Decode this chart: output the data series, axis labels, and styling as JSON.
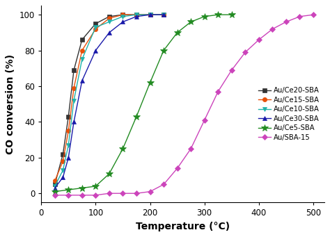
{
  "title": "",
  "xlabel": "Temperature (°C)",
  "ylabel": "CO conversion (%)",
  "xlim": [
    0,
    520
  ],
  "ylim": [
    -5,
    105
  ],
  "xticks": [
    0,
    100,
    200,
    300,
    400,
    500
  ],
  "yticks": [
    0,
    20,
    40,
    60,
    80,
    100
  ],
  "series": [
    {
      "label": "Au/Ce20-SBA",
      "color": "#333333",
      "marker": "s",
      "markersize": 4.5,
      "x": [
        25,
        40,
        50,
        60,
        75,
        100,
        125,
        150,
        175,
        200,
        225
      ],
      "y": [
        5,
        22,
        43,
        69,
        86,
        95,
        99,
        100,
        100,
        100,
        100
      ]
    },
    {
      "label": "Au/Ce15-SBA",
      "color": "#e8500a",
      "marker": "o",
      "markersize": 4.5,
      "x": [
        25,
        40,
        50,
        60,
        75,
        100,
        125,
        150,
        175,
        200,
        225
      ],
      "y": [
        7,
        18,
        35,
        59,
        80,
        92,
        98,
        100,
        100,
        100,
        100
      ]
    },
    {
      "label": "Au/Ce10-SBA",
      "color": "#20b2aa",
      "marker": "v",
      "markersize": 4.5,
      "x": [
        25,
        40,
        50,
        60,
        75,
        100,
        125,
        150,
        175,
        200,
        225
      ],
      "y": [
        4,
        13,
        27,
        52,
        75,
        93,
        96,
        99,
        100,
        100,
        100
      ]
    },
    {
      "label": "Au/Ce30-SBA",
      "color": "#1a1aaa",
      "marker": "^",
      "markersize": 4.5,
      "x": [
        25,
        40,
        50,
        60,
        75,
        100,
        125,
        150,
        175,
        200,
        225
      ],
      "y": [
        3,
        9,
        20,
        40,
        63,
        80,
        90,
        96,
        99,
        100,
        100
      ]
    },
    {
      "label": "Au/Ce5-SBA",
      "color": "#228B22",
      "marker": "*",
      "markersize": 7,
      "x": [
        25,
        50,
        75,
        100,
        125,
        150,
        175,
        200,
        225,
        250,
        275,
        300,
        325,
        350
      ],
      "y": [
        1,
        2,
        3,
        4,
        11,
        25,
        43,
        62,
        80,
        90,
        96,
        99,
        100,
        100
      ]
    },
    {
      "label": "Au/SBA-15",
      "color": "#cc44bb",
      "marker": "D",
      "markersize": 4.5,
      "x": [
        25,
        50,
        75,
        100,
        125,
        150,
        175,
        200,
        225,
        250,
        275,
        300,
        325,
        350,
        375,
        400,
        425,
        450,
        475,
        500
      ],
      "y": [
        -1,
        -1,
        -1,
        -1,
        0,
        0,
        0,
        1,
        5,
        14,
        25,
        41,
        57,
        69,
        79,
        86,
        92,
        96,
        99,
        100
      ]
    }
  ]
}
